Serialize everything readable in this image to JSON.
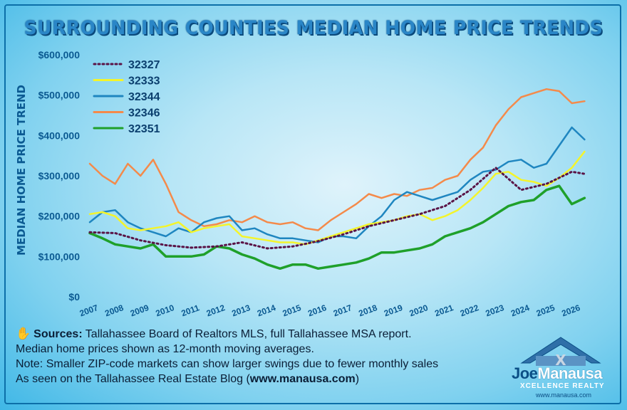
{
  "title": "SURROUNDING COUNTIES MEDIAN HOME PRICE TRENDS",
  "y_axis_label": "MEDIAN HOME PRICE TREND",
  "notes": {
    "sources_label": "Sources:",
    "sources_text": "Tallahassee Board of Realtors MLS, full Tallahassee MSA report.",
    "line2": "Median home prices shown as 12-month moving averages.",
    "line3": "Note: Smaller ZIP-code markets can show larger swings due to fewer monthly sales",
    "line4_prefix": "As seen on the Tallahassee Real Estate Blog (",
    "line4_link": "www.manausa.com",
    "line4_suffix": ")"
  },
  "logo": {
    "name_part1": "Joe",
    "name_part2": "Manausa",
    "tagline": "XCELLENCE REALTY",
    "url": "www.manausa.com"
  },
  "colors": {
    "32327": "#5a1446",
    "32333": "#f4f42a",
    "32344": "#1f86c0",
    "32346": "#f48a4a",
    "32351": "#1fa02a",
    "axis_text": "#0b5a92"
  },
  "chart_data": {
    "type": "line",
    "title": "SURROUNDING COUNTIES MEDIAN HOME PRICE TRENDS",
    "xlabel": "",
    "ylabel": "MEDIAN HOME PRICE TREND",
    "x_ticks": [
      "2007",
      "2008",
      "2009",
      "2010",
      "2011",
      "2012",
      "2013",
      "2014",
      "2015",
      "2016",
      "2017",
      "2018",
      "2019",
      "2020",
      "2021",
      "2022",
      "2023",
      "2024",
      "2025",
      "2026"
    ],
    "y_ticks": [
      "$0",
      "$100,000",
      "$200,000",
      "$300,000",
      "$400,000",
      "$500,000",
      "$600,000"
    ],
    "ylim": [
      0,
      600000
    ],
    "xlim": [
      2007,
      2026.6
    ],
    "grid": false,
    "legend": "top-left",
    "series": [
      {
        "name": "32327",
        "style": "dotted",
        "x": [
          2007,
          2008,
          2009,
          2010,
          2011,
          2012,
          2013,
          2014,
          2015,
          2016,
          2017,
          2018,
          2019,
          2020,
          2021,
          2022,
          2023,
          2024,
          2025,
          2026,
          2026.5
        ],
        "y": [
          160000,
          158000,
          140000,
          128000,
          122000,
          125000,
          135000,
          120000,
          125000,
          138000,
          155000,
          175000,
          190000,
          205000,
          225000,
          265000,
          320000,
          265000,
          280000,
          310000,
          305000
        ]
      },
      {
        "name": "32333",
        "style": "solid",
        "x": [
          2007,
          2007.5,
          2008,
          2008.5,
          2009,
          2009.5,
          2010,
          2010.5,
          2011,
          2011.5,
          2012,
          2012.5,
          2013,
          2013.5,
          2014,
          2014.5,
          2015,
          2015.5,
          2016,
          2016.5,
          2017,
          2017.5,
          2018,
          2018.5,
          2019,
          2019.5,
          2020,
          2020.5,
          2021,
          2021.5,
          2022,
          2022.5,
          2023,
          2023.5,
          2024,
          2024.5,
          2025,
          2025.5,
          2026,
          2026.5
        ],
        "y": [
          205000,
          210000,
          200000,
          170000,
          165000,
          170000,
          175000,
          185000,
          160000,
          170000,
          175000,
          180000,
          150000,
          145000,
          140000,
          135000,
          135000,
          130000,
          140000,
          150000,
          160000,
          170000,
          180000,
          185000,
          190000,
          200000,
          205000,
          190000,
          200000,
          215000,
          240000,
          270000,
          305000,
          310000,
          290000,
          285000,
          275000,
          295000,
          320000,
          360000
        ]
      },
      {
        "name": "32344",
        "style": "solid",
        "x": [
          2007,
          2007.5,
          2008,
          2008.5,
          2009,
          2009.5,
          2010,
          2010.5,
          2011,
          2011.5,
          2012,
          2012.5,
          2013,
          2013.5,
          2014,
          2014.5,
          2015,
          2015.5,
          2016,
          2016.5,
          2017,
          2017.5,
          2018,
          2018.5,
          2019,
          2019.5,
          2020,
          2020.5,
          2021,
          2021.5,
          2022,
          2022.5,
          2023,
          2023.5,
          2024,
          2024.5,
          2025,
          2025.5,
          2026,
          2026.5
        ],
        "y": [
          185000,
          210000,
          215000,
          185000,
          170000,
          160000,
          150000,
          170000,
          160000,
          185000,
          195000,
          200000,
          165000,
          170000,
          155000,
          145000,
          145000,
          140000,
          135000,
          150000,
          150000,
          145000,
          175000,
          200000,
          240000,
          260000,
          250000,
          240000,
          250000,
          260000,
          290000,
          310000,
          315000,
          335000,
          340000,
          320000,
          330000,
          375000,
          420000,
          390000
        ]
      },
      {
        "name": "32346",
        "style": "solid",
        "x": [
          2007,
          2007.5,
          2008,
          2008.5,
          2009,
          2009.5,
          2010,
          2010.5,
          2011,
          2011.5,
          2012,
          2012.5,
          2013,
          2013.5,
          2014,
          2014.5,
          2015,
          2015.5,
          2016,
          2016.5,
          2017,
          2017.5,
          2018,
          2018.5,
          2019,
          2019.5,
          2020,
          2020.5,
          2021,
          2021.5,
          2022,
          2022.5,
          2023,
          2023.5,
          2024,
          2024.5,
          2025,
          2025.5,
          2026,
          2026.5
        ],
        "y": [
          330000,
          300000,
          280000,
          330000,
          300000,
          340000,
          280000,
          210000,
          190000,
          175000,
          180000,
          190000,
          185000,
          200000,
          185000,
          180000,
          185000,
          170000,
          165000,
          190000,
          210000,
          230000,
          255000,
          245000,
          255000,
          250000,
          265000,
          270000,
          290000,
          300000,
          340000,
          370000,
          425000,
          465000,
          495000,
          505000,
          515000,
          510000,
          480000,
          485000
        ]
      },
      {
        "name": "32351",
        "style": "solid",
        "x": [
          2007,
          2007.5,
          2008,
          2008.5,
          2009,
          2009.5,
          2010,
          2010.5,
          2011,
          2011.5,
          2012,
          2012.5,
          2013,
          2013.5,
          2014,
          2014.5,
          2015,
          2015.5,
          2016,
          2016.5,
          2017,
          2017.5,
          2018,
          2018.5,
          2019,
          2019.5,
          2020,
          2020.5,
          2021,
          2021.5,
          2022,
          2022.5,
          2023,
          2023.5,
          2024,
          2024.5,
          2025,
          2025.5,
          2026,
          2026.5
        ],
        "y": [
          158000,
          145000,
          130000,
          125000,
          120000,
          130000,
          100000,
          100000,
          100000,
          105000,
          125000,
          120000,
          105000,
          95000,
          80000,
          70000,
          80000,
          80000,
          70000,
          75000,
          80000,
          85000,
          95000,
          110000,
          110000,
          115000,
          120000,
          130000,
          150000,
          160000,
          170000,
          185000,
          205000,
          225000,
          235000,
          240000,
          265000,
          275000,
          230000,
          245000
        ]
      }
    ]
  }
}
